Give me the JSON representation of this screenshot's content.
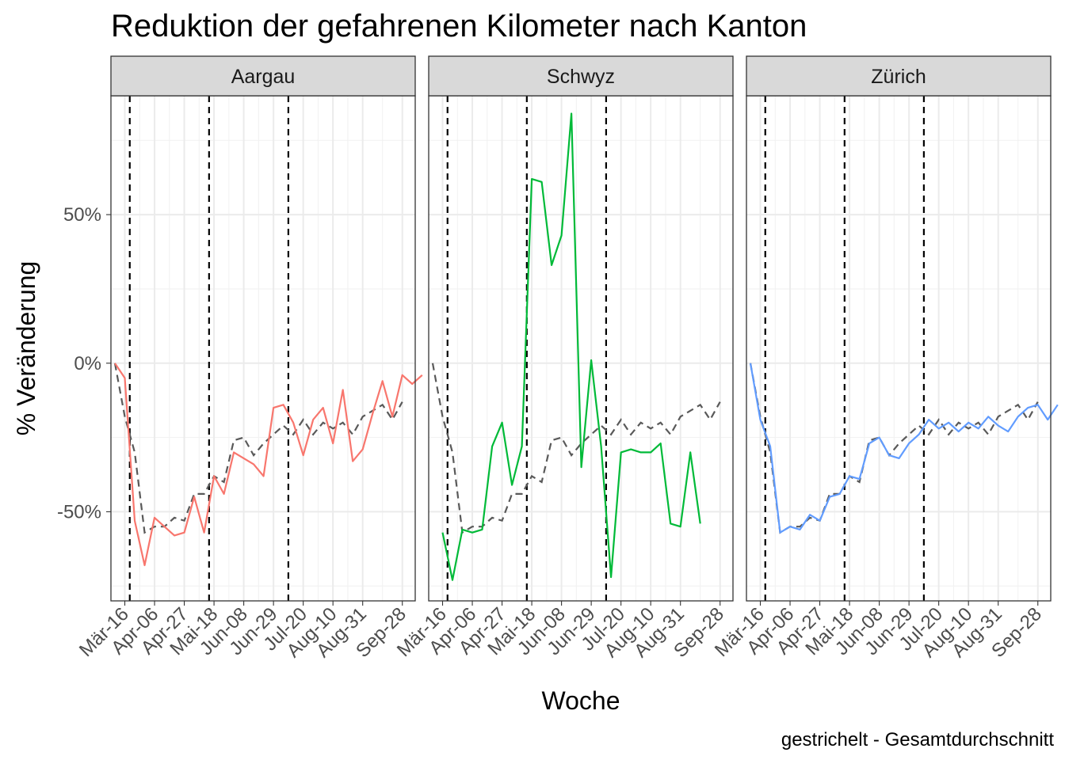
{
  "chart_data": {
    "type": "line",
    "title": "Reduktion der gefahrenen Kilometer nach Kanton",
    "xlabel": "Woche",
    "ylabel": "% Veränderung",
    "caption": "gestrichelt - Gesamtdurchschnitt",
    "y_ticks": [
      {
        "value": 50,
        "label": "50%"
      },
      {
        "value": 0,
        "label": "0%"
      },
      {
        "value": -50,
        "label": "-50%"
      }
    ],
    "ylim": [
      -80,
      90
    ],
    "x_ticks": [
      {
        "week": 2,
        "label": "Mär-16"
      },
      {
        "week": 5,
        "label": "Apr-06"
      },
      {
        "week": 8,
        "label": "Apr-27"
      },
      {
        "week": 11,
        "label": "Mai-18"
      },
      {
        "week": 14,
        "label": "Jun-08"
      },
      {
        "week": 17,
        "label": "Jun-29"
      },
      {
        "week": 20,
        "label": "Jul-20"
      },
      {
        "week": 23,
        "label": "Aug-10"
      },
      {
        "week": 26,
        "label": "Aug-31"
      },
      {
        "week": 30,
        "label": "Sep-28"
      }
    ],
    "vlines_week": [
      2.5,
      10.5,
      18.5
    ],
    "average": [
      0,
      -18,
      -30,
      -57,
      -55,
      -55,
      -52,
      -53,
      -44,
      -44,
      -38,
      -40,
      -26,
      -25,
      -31,
      -27,
      -24,
      -21,
      -24,
      -19,
      -24,
      -20,
      -22,
      -20,
      -24,
      -18,
      -16,
      -14,
      -19,
      -13
    ],
    "facets": [
      {
        "name": "Aargau",
        "color": "#F8766D",
        "values": [
          0,
          -5,
          -53,
          -68,
          -52,
          -55,
          -58,
          -57,
          -45,
          -57,
          -38,
          -44,
          -30,
          -32,
          -34,
          -38,
          -15,
          -14,
          -20,
          -31,
          -19,
          -15,
          -27,
          -9,
          -33,
          -29,
          -17,
          -6,
          -18,
          -4,
          -7,
          -4
        ]
      },
      {
        "name": "Schwyz",
        "color": "#00BA38",
        "values": [
          -57,
          -73,
          -56,
          -57,
          -56,
          -28,
          -20,
          -41,
          -28,
          62,
          61,
          33,
          43,
          84,
          -35,
          1,
          -28,
          -72,
          -30,
          -29,
          -30,
          -30,
          -27,
          -54,
          -55,
          -30,
          -54
        ]
      },
      {
        "name": "Zürich",
        "color": "#619CFF",
        "values": [
          0,
          -19,
          -28,
          -57,
          -55,
          -56,
          -51,
          -53,
          -45,
          -44,
          -38,
          -39,
          -27,
          -25,
          -31,
          -32,
          -27,
          -24,
          -19,
          -22,
          -20,
          -23,
          -20,
          -22,
          -18,
          -21,
          -23,
          -18,
          -15,
          -14,
          -19,
          -14
        ]
      }
    ]
  }
}
